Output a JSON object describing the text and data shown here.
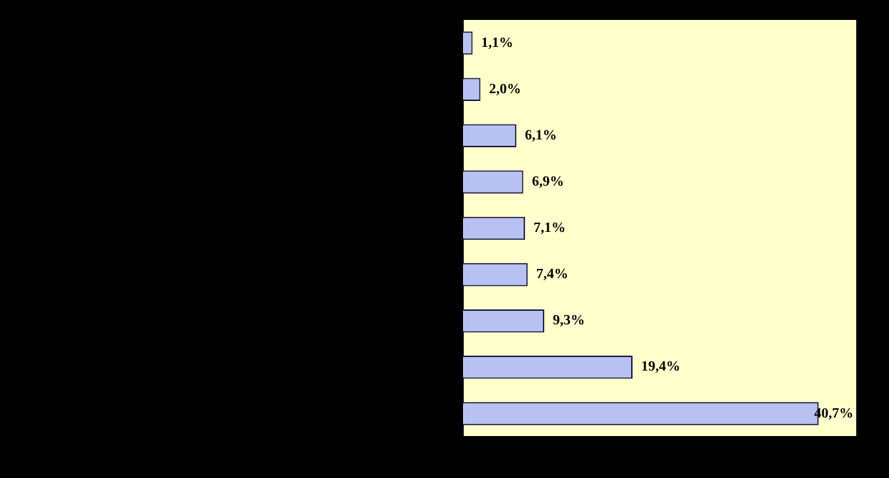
{
  "chart_data": {
    "type": "bar",
    "orientation": "horizontal",
    "categories": [
      null,
      null,
      null,
      null,
      null,
      null,
      null,
      null,
      null
    ],
    "values": [
      1.1,
      2.0,
      6.1,
      6.9,
      7.1,
      7.4,
      9.3,
      19.4,
      40.7
    ],
    "value_labels": [
      "1,1%",
      "2,0%",
      "6,1%",
      "6,9%",
      "7,1%",
      "7,4%",
      "9,3%",
      "19,4%",
      "40,7%"
    ],
    "color": "#b8c2f2",
    "xlim": [
      0,
      45
    ],
    "legend": false
  }
}
